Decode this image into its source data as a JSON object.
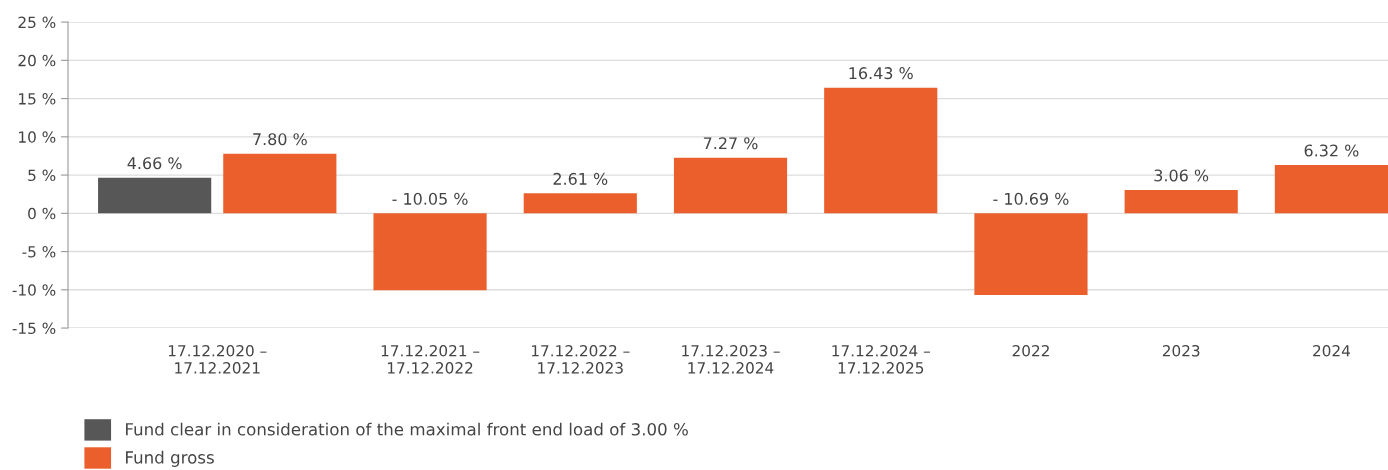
{
  "chart_data": {
    "type": "bar",
    "categories": [
      "17.12.2020 –\n17.12.2021",
      "17.12.2021 –\n17.12.2022",
      "17.12.2022 –\n17.12.2023",
      "17.12.2023 –\n17.12.2024",
      "17.12.2024 –\n17.12.2025",
      "2022",
      "2023",
      "2024"
    ],
    "series": [
      {
        "name": "Fund clear in consideration of the maximal front end load of 3.00 %",
        "color": "#575757",
        "values": [
          4.66,
          null,
          null,
          null,
          null,
          null,
          null,
          null
        ],
        "value_labels": [
          "4.66 %",
          null,
          null,
          null,
          null,
          null,
          null,
          null
        ]
      },
      {
        "name": "Fund gross",
        "color": "#eb5f2c",
        "values": [
          7.8,
          -10.05,
          2.61,
          7.27,
          16.43,
          -10.69,
          3.06,
          6.32
        ],
        "value_labels": [
          "7.80 %",
          "- 10.05 %",
          "2.61 %",
          "7.27 %",
          "16.43 %",
          "- 10.69 %",
          "3.06 %",
          "6.32 %"
        ]
      }
    ],
    "ylim": [
      -15,
      25
    ],
    "yticks": [
      {
        "value": -15,
        "label": "-15 %"
      },
      {
        "value": -10,
        "label": "-10 %"
      },
      {
        "value": -5,
        "label": "-5 %"
      },
      {
        "value": 0,
        "label": "0 %"
      },
      {
        "value": 5,
        "label": "5 %"
      },
      {
        "value": 10,
        "label": "10 %"
      },
      {
        "value": 15,
        "label": "15 %"
      },
      {
        "value": 20,
        "label": "20 %"
      },
      {
        "value": 25,
        "label": "25 %"
      }
    ],
    "grid": "y",
    "legend": "bottom left"
  }
}
